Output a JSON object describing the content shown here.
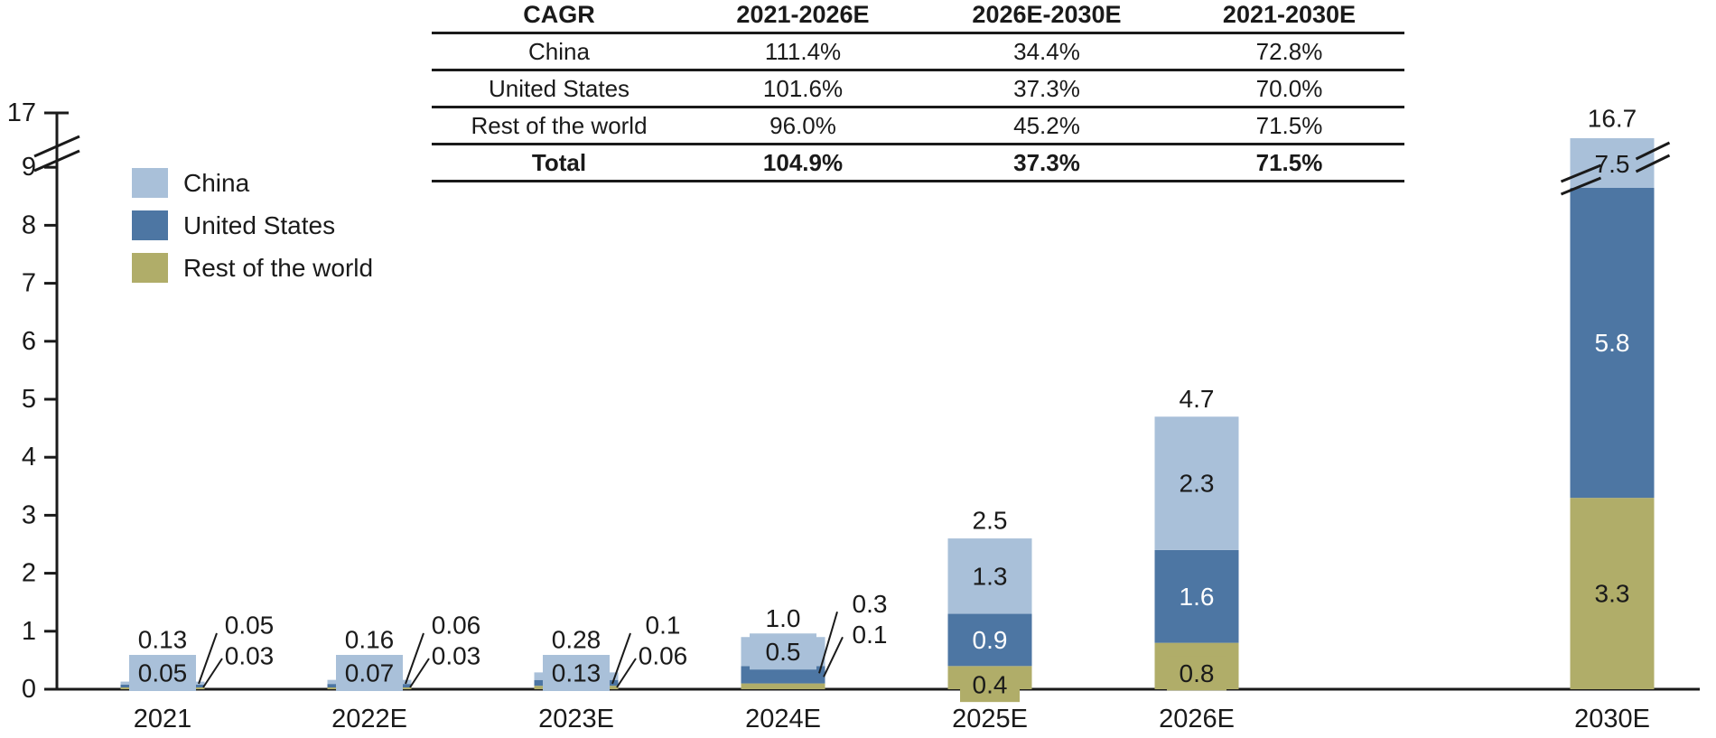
{
  "colors": {
    "china": "#a9c0d9",
    "us": "#4d76a3",
    "row": "#b0ad69",
    "text": "#1a1a1a",
    "axis": "#1a1a1a",
    "white": "#ffffff"
  },
  "cagr_table": {
    "header": [
      "CAGR",
      "2021-2026E",
      "2026E-2030E",
      "2021-2030E"
    ],
    "rows": [
      {
        "label": "China",
        "v1": "111.4%",
        "v2": "34.4%",
        "v3": "72.8%"
      },
      {
        "label": "United States",
        "v1": "101.6%",
        "v2": "37.3%",
        "v3": "70.0%"
      },
      {
        "label": "Rest of the world",
        "v1": "96.0%",
        "v2": "45.2%",
        "v3": "71.5%"
      },
      {
        "label": "Total",
        "v1": "104.9%",
        "v2": "37.3%",
        "v3": "71.5%"
      }
    ]
  },
  "legend": {
    "items": [
      {
        "label": "China",
        "color": "#a9c0d9"
      },
      {
        "label": "United States",
        "color": "#4d76a3"
      },
      {
        "label": "Rest of the world",
        "color": "#b0ad69"
      }
    ]
  },
  "chart_data": {
    "type": "bar",
    "stacked": true,
    "title": "",
    "xlabel": "",
    "ylabel": "",
    "axis_break": true,
    "ylim": [
      0,
      17
    ],
    "y_ticks": [
      "0",
      "1",
      "2",
      "3",
      "4",
      "5",
      "6",
      "7",
      "8",
      "9",
      "17"
    ],
    "categories": [
      "2021",
      "2022E",
      "2023E",
      "2024E",
      "2025E",
      "2026E",
      "2030E"
    ],
    "series": [
      {
        "name": "Rest of the world",
        "color": "#b0ad69",
        "values": [
          0.03,
          0.03,
          0.06,
          0.1,
          0.4,
          0.8,
          3.3
        ]
      },
      {
        "name": "United States",
        "color": "#4d76a3",
        "values": [
          0.05,
          0.06,
          0.1,
          0.3,
          0.9,
          1.6,
          5.8
        ]
      },
      {
        "name": "China",
        "color": "#a9c0d9",
        "values": [
          0.05,
          0.07,
          0.13,
          0.5,
          1.3,
          2.3,
          7.5
        ]
      }
    ],
    "bars": [
      {
        "category": "2021",
        "total": "0.13",
        "labels": {
          "china": "0.05",
          "us": "0.05",
          "row": "0.03"
        },
        "style": "callout"
      },
      {
        "category": "2022E",
        "total": "0.16",
        "labels": {
          "china": "0.07",
          "us": "0.06",
          "row": "0.03"
        },
        "style": "callout"
      },
      {
        "category": "2023E",
        "total": "0.28",
        "labels": {
          "china": "0.13",
          "us": "0.1",
          "row": "0.06"
        },
        "style": "callout"
      },
      {
        "category": "2024E",
        "total": "1.0",
        "labels": {
          "china": "0.5",
          "us": "0.3",
          "row": "0.1"
        },
        "style": "callout"
      },
      {
        "category": "2025E",
        "total": "2.5",
        "labels": {
          "china": "1.3",
          "us": "0.9",
          "row": "0.4"
        },
        "style": "inside",
        "row_box": true
      },
      {
        "category": "2026E",
        "total": "4.7",
        "labels": {
          "china": "2.3",
          "us": "1.6",
          "row": "0.8"
        },
        "style": "inside",
        "row_box": true
      },
      {
        "category": "2030E",
        "total": "16.7",
        "labels": {
          "china": "7.5",
          "us": "5.8",
          "row": "3.3"
        },
        "style": "inside",
        "broken": true
      }
    ],
    "legend_position": "upper left",
    "grid": false
  }
}
